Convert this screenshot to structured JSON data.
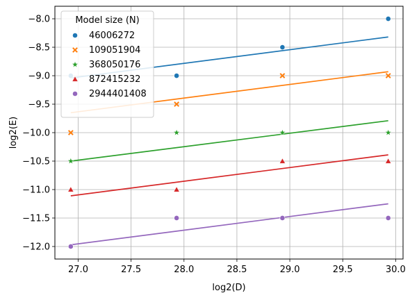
{
  "chart_data": {
    "type": "scatter",
    "xlabel": "log2(D)",
    "ylabel": "log2(E)",
    "xlim": [
      26.78,
      30.07
    ],
    "ylim": [
      -12.22,
      -7.78
    ],
    "xticks": [
      27.0,
      27.5,
      28.0,
      28.5,
      29.0,
      29.5,
      30.0
    ],
    "xtick_labels": [
      "27.0",
      "27.5",
      "28.0",
      "28.5",
      "29.0",
      "29.5",
      "30.0"
    ],
    "yticks": [
      -12.0,
      -11.5,
      -11.0,
      -10.5,
      -10.0,
      -9.5,
      -9.0,
      -8.5,
      -8.0
    ],
    "ytick_labels": [
      "−12.0",
      "−11.5",
      "−11.0",
      "−10.5",
      "−10.0",
      "−9.5",
      "−9.0",
      "−8.5",
      "−8.0"
    ],
    "grid": true,
    "legend": {
      "title": "Model size (N)",
      "placement": "top-left"
    },
    "series": [
      {
        "name": "46006272",
        "color": "#1f77b4",
        "marker": "circle",
        "x": [
          26.93,
          27.93,
          28.93,
          29.93
        ],
        "y": [
          -9.0,
          -9.0,
          -8.5,
          -8.0
        ],
        "fit": {
          "x": [
            26.93,
            29.93
          ],
          "y": [
            -9.04,
            -8.32
          ]
        }
      },
      {
        "name": "109051904",
        "color": "#ff7f0e",
        "marker": "x",
        "x": [
          26.93,
          27.93,
          28.93,
          29.93
        ],
        "y": [
          -10.0,
          -9.5,
          -9.0,
          -9.0
        ],
        "fit": {
          "x": [
            26.93,
            29.93
          ],
          "y": [
            -9.65,
            -8.93
          ]
        }
      },
      {
        "name": "368050176",
        "color": "#2ca02c",
        "marker": "star",
        "x": [
          26.93,
          27.93,
          28.93,
          29.93
        ],
        "y": [
          -10.5,
          -10.0,
          -10.0,
          -10.0
        ],
        "fit": {
          "x": [
            26.93,
            29.93
          ],
          "y": [
            -10.5,
            -9.79
          ]
        }
      },
      {
        "name": "872415232",
        "color": "#d62728",
        "marker": "triangle",
        "x": [
          26.93,
          27.93,
          28.93,
          29.93
        ],
        "y": [
          -11.0,
          -11.0,
          -10.5,
          -10.5
        ],
        "fit": {
          "x": [
            26.93,
            29.93
          ],
          "y": [
            -11.11,
            -10.39
          ]
        }
      },
      {
        "name": "2944401408",
        "color": "#9467bd",
        "marker": "circle",
        "x": [
          26.93,
          27.93,
          28.93,
          29.93
        ],
        "y": [
          -12.0,
          -11.5,
          -11.5,
          -11.5
        ],
        "fit": {
          "x": [
            26.93,
            29.93
          ],
          "y": [
            -11.97,
            -11.25
          ]
        }
      }
    ]
  }
}
